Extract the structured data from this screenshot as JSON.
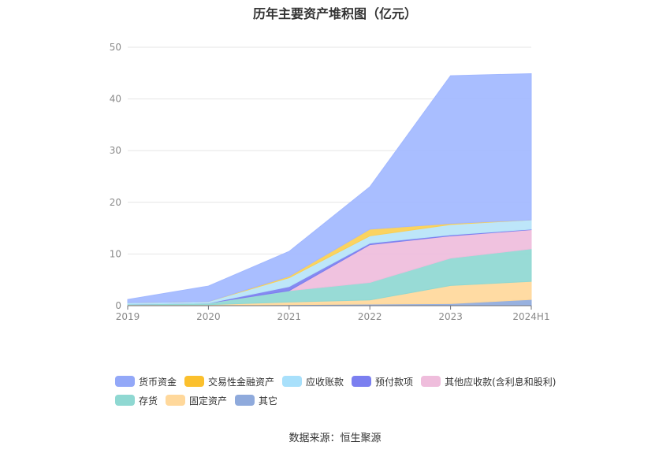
{
  "title": "历年主要资产堆积图（亿元）",
  "source": "数据来源：恒生聚源",
  "chart_data": {
    "type": "area",
    "stacked": true,
    "categories": [
      "2019",
      "2020",
      "2021",
      "2022",
      "2023",
      "2024H1"
    ],
    "y_ticks": [
      "0",
      "10",
      "20",
      "30",
      "40",
      "50"
    ],
    "ylim": [
      0,
      50
    ],
    "grid": true,
    "legend_position": "bottom",
    "series": [
      {
        "name": "其它",
        "color": "#8faadc",
        "values": [
          0.1,
          0.1,
          0.2,
          0.3,
          0.4,
          1.2
        ]
      },
      {
        "name": "固定资产",
        "color": "#ffd89b",
        "values": [
          0.1,
          0.1,
          0.5,
          0.8,
          3.5,
          3.5
        ]
      },
      {
        "name": "存货",
        "color": "#8fd8d2",
        "values": [
          0.1,
          0.3,
          2.2,
          3.4,
          5.3,
          6.3
        ]
      },
      {
        "name": "其他应收款(含利息和股利)",
        "color": "#efbddc",
        "values": [
          0.0,
          0.0,
          0.0,
          7.3,
          4.3,
          3.7
        ]
      },
      {
        "name": "预付款项",
        "color": "#7b7ff0",
        "values": [
          0.0,
          0.0,
          0.8,
          0.3,
          0.2,
          0.1
        ]
      },
      {
        "name": "应收账款",
        "color": "#b7e4f9",
        "values": [
          0.3,
          0.3,
          1.7,
          1.4,
          2.0,
          1.8
        ]
      },
      {
        "name": "交易性金融资产",
        "color": "#fbcf52",
        "values": [
          0.0,
          0.0,
          0.3,
          1.3,
          0.2,
          0.0
        ]
      },
      {
        "name": "货币资金",
        "color": "#a2b8ff",
        "values": [
          0.6,
          3.0,
          4.8,
          8.2,
          28.6,
          28.3
        ]
      }
    ],
    "legend": [
      {
        "name": "货币资金",
        "color": "#93a8f8"
      },
      {
        "name": "交易性金融资产",
        "color": "#fbc02d"
      },
      {
        "name": "应收账款",
        "color": "#a8e0fb"
      },
      {
        "name": "预付款项",
        "color": "#7b7ff0"
      },
      {
        "name": "其他应收款(含利息和股利)",
        "color": "#efbddc"
      },
      {
        "name": "存货",
        "color": "#8fd8d2"
      },
      {
        "name": "固定资产",
        "color": "#ffd89b"
      },
      {
        "name": "其它",
        "color": "#8faadc"
      }
    ]
  }
}
